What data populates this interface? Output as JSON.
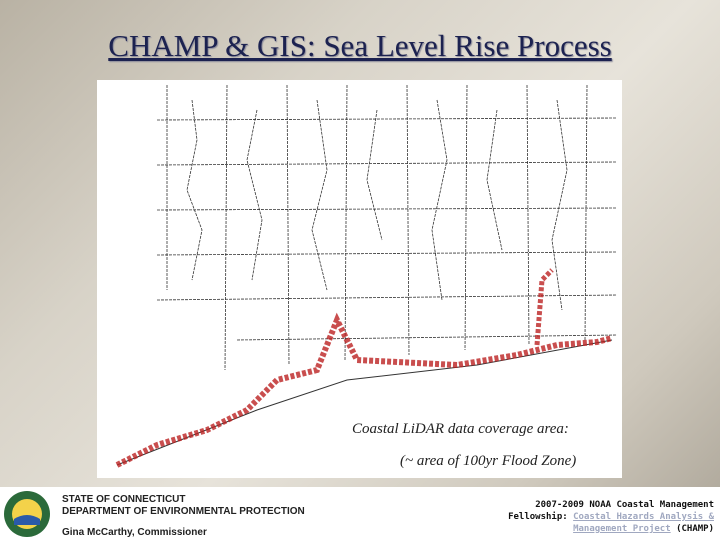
{
  "title": "CHAMP & GIS: Sea Level Rise Process",
  "map": {
    "caption_line1": "Coastal LiDAR data coverage area:",
    "caption_line2": "(~ area of 100yr Flood Zone)"
  },
  "footer": {
    "state": "STATE OF CONNECTICUT",
    "department": "DEPARTMENT OF ENVIRONMENTAL PROTECTION",
    "commissioner": "Gina McCarthy, Commissioner",
    "fellowship_line1": "2007-2009 NOAA Coastal Management",
    "fellowship_label": "Fellowship:",
    "project_link": "Coastal Hazards Analysis & Management Project",
    "project_acronym": "(CHAMP)"
  }
}
